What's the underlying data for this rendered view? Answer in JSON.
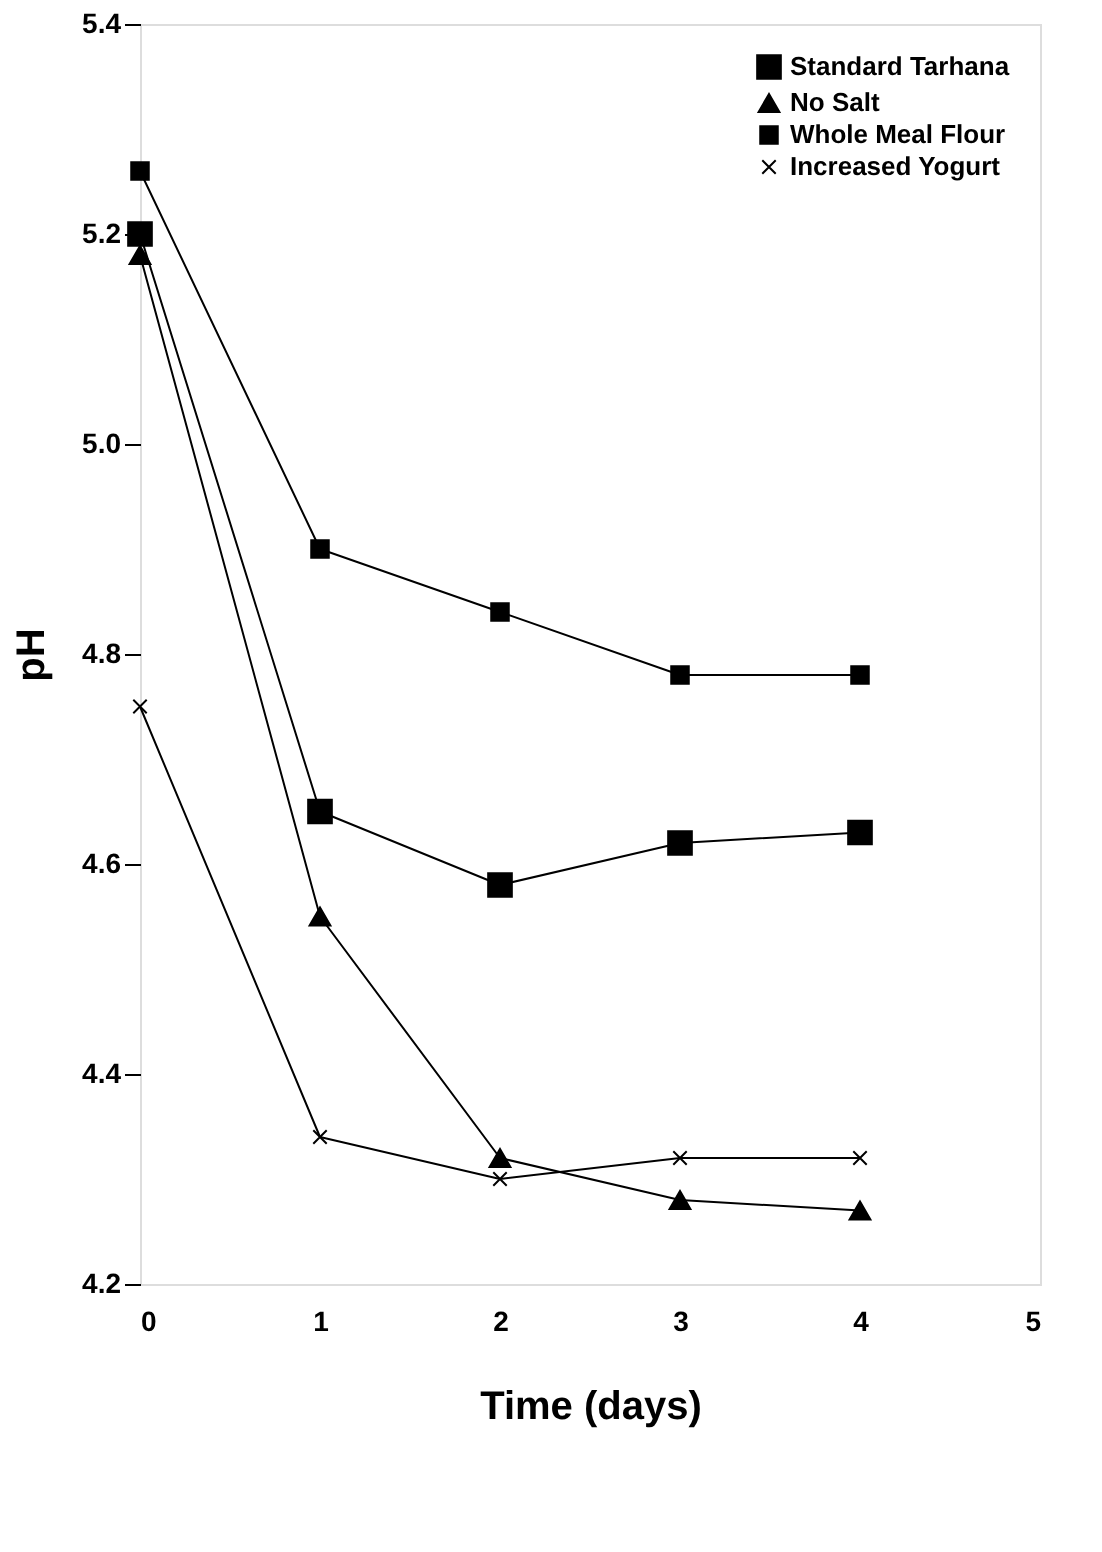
{
  "chart_data": {
    "type": "line",
    "xlabel": "Time (days)",
    "ylabel": "pH",
    "x": [
      0,
      1,
      2,
      3,
      4
    ],
    "xlim": [
      0,
      5
    ],
    "xticks": [
      0,
      1,
      2,
      3,
      4,
      5
    ],
    "ylim": [
      4.2,
      5.4
    ],
    "yticks": [
      {
        "value": 4.2,
        "label": "4.2"
      },
      {
        "value": 4.4,
        "label": "4.4"
      },
      {
        "value": 4.6,
        "label": "4.6"
      },
      {
        "value": 4.8,
        "label": "4.8"
      },
      {
        "value": 5,
        "label": "5.0"
      },
      {
        "value": 5.2,
        "label": "5.2"
      },
      {
        "value": 5.4,
        "label": "5.4"
      }
    ],
    "grid": false,
    "legend": "top right",
    "series": [
      {
        "name": "Standard Tarhana",
        "color": "#000000",
        "marker": "square",
        "values": [
          5.2,
          4.65,
          4.58,
          4.62,
          4.63
        ]
      },
      {
        "name": "No Salt",
        "color": "#000000",
        "marker": "triangle",
        "values": [
          5.18,
          4.55,
          4.32,
          4.28,
          4.27
        ]
      },
      {
        "name": "Whole Meal Flour",
        "color": "#000000",
        "marker": "square",
        "values": [
          5.26,
          4.9,
          4.84,
          4.78,
          4.78
        ]
      },
      {
        "name": "Increased Yogurt",
        "color": "#000000",
        "marker": "cross",
        "values": [
          4.75,
          4.34,
          4.3,
          4.32,
          4.32
        ]
      }
    ]
  }
}
